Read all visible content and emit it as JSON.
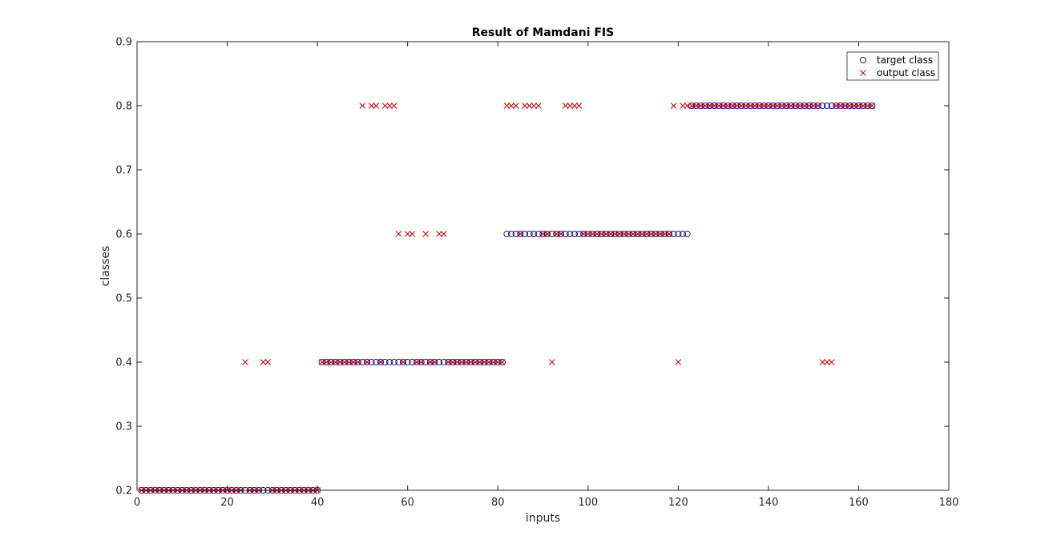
{
  "chart_data": {
    "type": "scatter",
    "title": "Result of Mamdani FIS",
    "xlabel": "inputs",
    "ylabel": "classes",
    "xlim": [
      0,
      180
    ],
    "ylim": [
      0.2,
      0.9
    ],
    "xticks": [
      "0",
      "20",
      "40",
      "60",
      "80",
      "100",
      "120",
      "140",
      "160",
      "180"
    ],
    "yticks": [
      "0.2",
      "0.3",
      "0.4",
      "0.5",
      "0.6",
      "0.7",
      "0.8",
      "0.9"
    ],
    "grid": false,
    "legend_position": "top-right",
    "series": [
      {
        "name": "target class",
        "marker": "circle",
        "color": "#00007f",
        "x": [
          1,
          2,
          3,
          4,
          5,
          6,
          7,
          8,
          9,
          10,
          11,
          12,
          13,
          14,
          15,
          16,
          17,
          18,
          19,
          20,
          21,
          22,
          23,
          24,
          25,
          26,
          27,
          28,
          29,
          30,
          31,
          32,
          33,
          34,
          35,
          36,
          37,
          38,
          39,
          40,
          41,
          42,
          43,
          44,
          45,
          46,
          47,
          48,
          49,
          50,
          51,
          52,
          53,
          54,
          55,
          56,
          57,
          58,
          59,
          60,
          61,
          62,
          63,
          64,
          65,
          66,
          67,
          68,
          69,
          70,
          71,
          72,
          73,
          74,
          75,
          76,
          77,
          78,
          79,
          80,
          81,
          82,
          83,
          84,
          85,
          86,
          87,
          88,
          89,
          90,
          91,
          92,
          93,
          94,
          95,
          96,
          97,
          98,
          99,
          100,
          101,
          102,
          103,
          104,
          105,
          106,
          107,
          108,
          109,
          110,
          111,
          112,
          113,
          114,
          115,
          116,
          117,
          118,
          119,
          120,
          121,
          122,
          123,
          124,
          125,
          126,
          127,
          128,
          129,
          130,
          131,
          132,
          133,
          134,
          135,
          136,
          137,
          138,
          139,
          140,
          141,
          142,
          143,
          144,
          145,
          146,
          147,
          148,
          149,
          150,
          151,
          152,
          153,
          154,
          155,
          156,
          157,
          158,
          159,
          160,
          161,
          162,
          163
        ],
        "y": [
          0.2,
          0.2,
          0.2,
          0.2,
          0.2,
          0.2,
          0.2,
          0.2,
          0.2,
          0.2,
          0.2,
          0.2,
          0.2,
          0.2,
          0.2,
          0.2,
          0.2,
          0.2,
          0.2,
          0.2,
          0.2,
          0.2,
          0.2,
          0.2,
          0.2,
          0.2,
          0.2,
          0.2,
          0.2,
          0.2,
          0.2,
          0.2,
          0.2,
          0.2,
          0.2,
          0.2,
          0.2,
          0.2,
          0.2,
          0.2,
          0.4,
          0.4,
          0.4,
          0.4,
          0.4,
          0.4,
          0.4,
          0.4,
          0.4,
          0.4,
          0.4,
          0.4,
          0.4,
          0.4,
          0.4,
          0.4,
          0.4,
          0.4,
          0.4,
          0.4,
          0.4,
          0.4,
          0.4,
          0.4,
          0.4,
          0.4,
          0.4,
          0.4,
          0.4,
          0.4,
          0.4,
          0.4,
          0.4,
          0.4,
          0.4,
          0.4,
          0.4,
          0.4,
          0.4,
          0.4,
          0.4,
          0.6,
          0.6,
          0.6,
          0.6,
          0.6,
          0.6,
          0.6,
          0.6,
          0.6,
          0.6,
          0.6,
          0.6,
          0.6,
          0.6,
          0.6,
          0.6,
          0.6,
          0.6,
          0.6,
          0.6,
          0.6,
          0.6,
          0.6,
          0.6,
          0.6,
          0.6,
          0.6,
          0.6,
          0.6,
          0.6,
          0.6,
          0.6,
          0.6,
          0.6,
          0.6,
          0.6,
          0.6,
          0.6,
          0.6,
          0.6,
          0.6,
          0.8,
          0.8,
          0.8,
          0.8,
          0.8,
          0.8,
          0.8,
          0.8,
          0.8,
          0.8,
          0.8,
          0.8,
          0.8,
          0.8,
          0.8,
          0.8,
          0.8,
          0.8,
          0.8,
          0.8,
          0.8,
          0.8,
          0.8,
          0.8,
          0.8,
          0.8,
          0.8,
          0.8,
          0.8,
          0.8,
          0.8,
          0.8,
          0.8,
          0.8,
          0.8,
          0.8,
          0.8,
          0.8,
          0.8,
          0.8,
          0.8
        ]
      },
      {
        "name": "output class",
        "marker": "x",
        "color": "#cc0000",
        "x": [
          1,
          2,
          3,
          4,
          5,
          6,
          7,
          8,
          9,
          10,
          11,
          12,
          13,
          14,
          15,
          16,
          17,
          18,
          19,
          20,
          21,
          22,
          23,
          24,
          25,
          26,
          27,
          28,
          29,
          30,
          31,
          32,
          33,
          34,
          35,
          36,
          37,
          38,
          39,
          40,
          41,
          42,
          43,
          44,
          45,
          46,
          47,
          48,
          49,
          50,
          51,
          52,
          53,
          54,
          55,
          56,
          57,
          58,
          59,
          60,
          61,
          62,
          63,
          64,
          65,
          66,
          67,
          68,
          69,
          70,
          71,
          72,
          73,
          74,
          75,
          76,
          77,
          78,
          79,
          80,
          81,
          82,
          83,
          84,
          85,
          86,
          87,
          88,
          89,
          90,
          91,
          92,
          93,
          94,
          95,
          96,
          97,
          98,
          99,
          100,
          101,
          102,
          103,
          104,
          105,
          106,
          107,
          108,
          109,
          110,
          111,
          112,
          113,
          114,
          115,
          116,
          117,
          118,
          119,
          120,
          121,
          122,
          123,
          124,
          125,
          126,
          127,
          128,
          129,
          130,
          131,
          132,
          133,
          134,
          135,
          136,
          137,
          138,
          139,
          140,
          141,
          142,
          143,
          144,
          145,
          146,
          147,
          148,
          149,
          150,
          151,
          152,
          153,
          154,
          155,
          156,
          157,
          158,
          159,
          160,
          161,
          162,
          163
        ],
        "y": [
          0.2,
          0.2,
          0.2,
          0.2,
          0.2,
          0.2,
          0.2,
          0.2,
          0.2,
          0.2,
          0.2,
          0.2,
          0.2,
          0.2,
          0.2,
          0.2,
          0.2,
          0.2,
          0.2,
          0.2,
          0.2,
          0.2,
          0.2,
          0.4,
          0.2,
          0.2,
          0.2,
          0.4,
          0.4,
          0.2,
          0.2,
          0.2,
          0.2,
          0.2,
          0.2,
          0.2,
          0.2,
          0.2,
          0.2,
          0.2,
          0.4,
          0.4,
          0.4,
          0.4,
          0.4,
          0.4,
          0.4,
          0.4,
          0.4,
          0.8,
          0.4,
          0.8,
          0.8,
          0.4,
          0.8,
          0.8,
          0.8,
          0.6,
          0.4,
          0.6,
          0.6,
          0.4,
          0.4,
          0.6,
          0.4,
          0.4,
          0.6,
          0.6,
          0.4,
          0.4,
          0.4,
          0.4,
          0.4,
          0.4,
          0.4,
          0.4,
          0.4,
          0.4,
          0.4,
          0.4,
          0.4,
          0.8,
          0.8,
          0.8,
          0.6,
          0.8,
          0.8,
          0.8,
          0.8,
          0.6,
          0.6,
          0.4,
          0.6,
          0.6,
          0.8,
          0.8,
          0.8,
          0.8,
          0.6,
          0.6,
          0.6,
          0.6,
          0.6,
          0.6,
          0.6,
          0.6,
          0.6,
          0.6,
          0.6,
          0.6,
          0.6,
          0.6,
          0.6,
          0.6,
          0.6,
          0.6,
          0.6,
          0.6,
          0.8,
          0.4,
          0.8,
          0.8,
          0.8,
          0.8,
          0.8,
          0.8,
          0.8,
          0.8,
          0.8,
          0.8,
          0.8,
          0.8,
          0.8,
          0.8,
          0.8,
          0.8,
          0.8,
          0.8,
          0.8,
          0.8,
          0.8,
          0.8,
          0.8,
          0.8,
          0.8,
          0.8,
          0.8,
          0.8,
          0.8,
          0.8,
          0.8,
          0.4,
          0.4,
          0.4,
          0.8,
          0.8,
          0.8,
          0.8,
          0.8,
          0.8,
          0.8,
          0.8,
          0.8
        ]
      }
    ]
  }
}
